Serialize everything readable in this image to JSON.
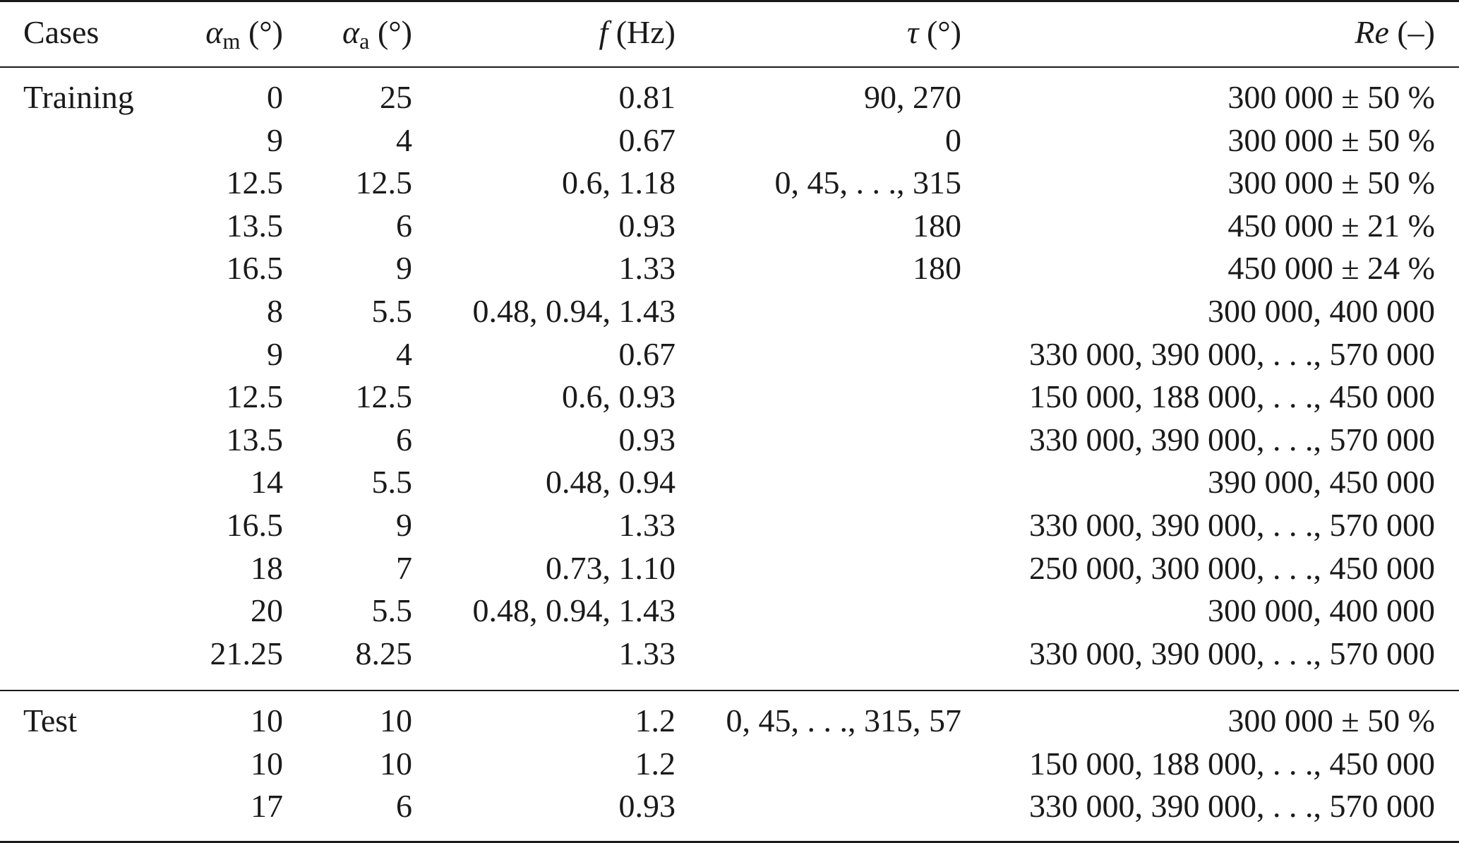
{
  "table": {
    "headers": {
      "cases": "Cases",
      "alpha_m_sym": "α",
      "alpha_m_sub": "m",
      "alpha_m_unit": " (°)",
      "alpha_a_sym": "α",
      "alpha_a_sub": "a",
      "alpha_a_unit": " (°)",
      "f_sym": "f",
      "f_unit": " (Hz)",
      "tau_sym": "τ",
      "tau_unit": " (°)",
      "re_sym": "Re",
      "re_unit": " (–)"
    },
    "training_rows": [
      {
        "case": "Training",
        "alpha_m": "0",
        "alpha_a": "25",
        "f": "0.81",
        "tau": "90, 270",
        "re": "300 000 ± 50 %"
      },
      {
        "case": "",
        "alpha_m": "9",
        "alpha_a": "4",
        "f": "0.67",
        "tau": "0",
        "re": "300 000 ± 50 %"
      },
      {
        "case": "",
        "alpha_m": "12.5",
        "alpha_a": "12.5",
        "f": "0.6, 1.18",
        "tau": "0, 45, . . ., 315",
        "re": "300 000 ± 50 %"
      },
      {
        "case": "",
        "alpha_m": "13.5",
        "alpha_a": "6",
        "f": "0.93",
        "tau": "180",
        "re": "450 000 ± 21 %"
      },
      {
        "case": "",
        "alpha_m": "16.5",
        "alpha_a": "9",
        "f": "1.33",
        "tau": "180",
        "re": "450 000 ± 24 %"
      },
      {
        "case": "",
        "alpha_m": "8",
        "alpha_a": "5.5",
        "f": "0.48, 0.94, 1.43",
        "tau": "",
        "re": "300 000, 400 000"
      },
      {
        "case": "",
        "alpha_m": "9",
        "alpha_a": "4",
        "f": "0.67",
        "tau": "",
        "re": "330 000, 390 000, . . ., 570 000"
      },
      {
        "case": "",
        "alpha_m": "12.5",
        "alpha_a": "12.5",
        "f": "0.6, 0.93",
        "tau": "",
        "re": "150 000, 188 000, . . ., 450 000"
      },
      {
        "case": "",
        "alpha_m": "13.5",
        "alpha_a": "6",
        "f": "0.93",
        "tau": "",
        "re": "330 000, 390 000, . . ., 570 000"
      },
      {
        "case": "",
        "alpha_m": "14",
        "alpha_a": "5.5",
        "f": "0.48, 0.94",
        "tau": "",
        "re": "390 000, 450 000"
      },
      {
        "case": "",
        "alpha_m": "16.5",
        "alpha_a": "9",
        "f": "1.33",
        "tau": "",
        "re": "330 000, 390 000, . . ., 570 000"
      },
      {
        "case": "",
        "alpha_m": "18",
        "alpha_a": "7",
        "f": "0.73, 1.10",
        "tau": "",
        "re": "250 000, 300 000, . . ., 450 000"
      },
      {
        "case": "",
        "alpha_m": "20",
        "alpha_a": "5.5",
        "f": "0.48, 0.94, 1.43",
        "tau": "",
        "re": "300 000, 400 000"
      },
      {
        "case": "",
        "alpha_m": "21.25",
        "alpha_a": "8.25",
        "f": "1.33",
        "tau": "",
        "re": "330 000, 390 000, . . ., 570 000"
      }
    ],
    "test_rows": [
      {
        "case": "Test",
        "alpha_m": "10",
        "alpha_a": "10",
        "f": "1.2",
        "tau": "0, 45, . . ., 315, 57",
        "re": "300 000 ± 50 %"
      },
      {
        "case": "",
        "alpha_m": "10",
        "alpha_a": "10",
        "f": "1.2",
        "tau": "",
        "re": "150 000, 188 000, . . ., 450 000"
      },
      {
        "case": "",
        "alpha_m": "17",
        "alpha_a": "6",
        "f": "0.93",
        "tau": "",
        "re": "330 000, 390 000, . . ., 570 000"
      }
    ]
  }
}
